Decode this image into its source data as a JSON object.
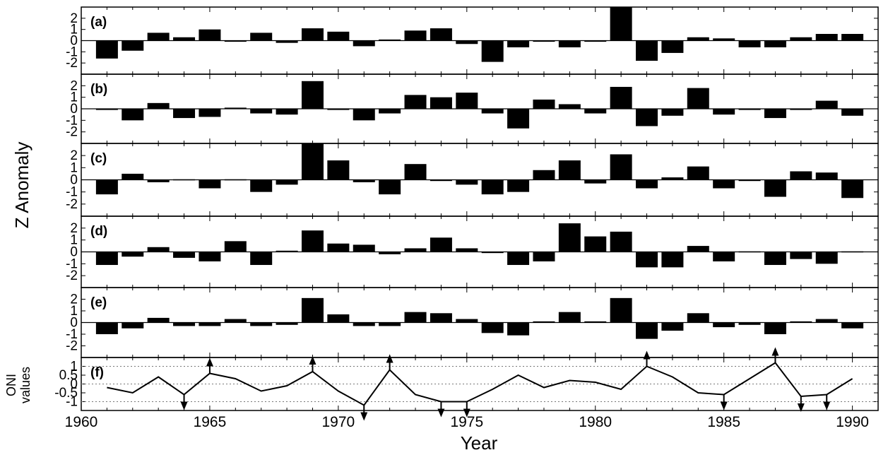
{
  "y_axis_title": "Z Anomaly",
  "x_axis_title": "Year",
  "oni_axis_title_line1": "ONI",
  "oni_axis_title_line2": "values",
  "x_ticks": [
    "1960",
    "1965",
    "1970",
    "1975",
    "1980",
    "1985",
    "1990"
  ],
  "chart_data": [
    {
      "type": "bar",
      "panel_label": "(a)",
      "ylim": [
        -3,
        3
      ],
      "yticks": [
        2,
        1,
        0,
        -1,
        -2
      ],
      "x": [
        1961,
        1962,
        1963,
        1964,
        1965,
        1966,
        1967,
        1968,
        1969,
        1970,
        1971,
        1972,
        1973,
        1974,
        1975,
        1976,
        1977,
        1978,
        1979,
        1980,
        1981,
        1982,
        1983,
        1984,
        1985,
        1986,
        1987,
        1988,
        1989,
        1990
      ],
      "values": [
        -1.6,
        -0.9,
        0.7,
        0.3,
        1.0,
        -0.1,
        0.7,
        -0.2,
        1.1,
        0.8,
        -0.5,
        0.1,
        0.9,
        1.1,
        -0.3,
        -1.9,
        -0.6,
        -0.1,
        -0.6,
        -0.1,
        3.2,
        -1.8,
        -1.1,
        0.3,
        0.2,
        -0.6,
        -0.6,
        0.3,
        0.6,
        0.6
      ]
    },
    {
      "type": "bar",
      "panel_label": "(b)",
      "ylim": [
        -3,
        3
      ],
      "yticks": [
        2,
        1,
        0,
        -1,
        -2
      ],
      "x": [
        1961,
        1962,
        1963,
        1964,
        1965,
        1966,
        1967,
        1968,
        1969,
        1970,
        1971,
        1972,
        1973,
        1974,
        1975,
        1976,
        1977,
        1978,
        1979,
        1980,
        1981,
        1982,
        1983,
        1984,
        1985,
        1986,
        1987,
        1988,
        1989,
        1990
      ],
      "values": [
        -0.1,
        -1.0,
        0.5,
        -0.8,
        -0.7,
        0.1,
        -0.4,
        -0.5,
        2.4,
        -0.1,
        -1.0,
        -0.4,
        1.2,
        1.0,
        1.4,
        -0.4,
        -1.7,
        0.8,
        0.4,
        -0.4,
        1.9,
        -1.5,
        -0.6,
        1.8,
        -0.5,
        -0.1,
        -0.8,
        -0.1,
        0.7,
        -0.6
      ]
    },
    {
      "type": "bar",
      "panel_label": "(c)",
      "ylim": [
        -3,
        3
      ],
      "yticks": [
        2,
        1,
        0,
        -1,
        -2
      ],
      "x": [
        1961,
        1962,
        1963,
        1964,
        1965,
        1966,
        1967,
        1968,
        1969,
        1970,
        1971,
        1972,
        1973,
        1974,
        1975,
        1976,
        1977,
        1978,
        1979,
        1980,
        1981,
        1982,
        1983,
        1984,
        1985,
        1986,
        1987,
        1988,
        1989,
        1990
      ],
      "values": [
        -1.2,
        0.5,
        -0.2,
        0.0,
        -0.7,
        0.0,
        -1.0,
        -0.4,
        3.0,
        1.6,
        -0.2,
        -1.2,
        1.3,
        -0.1,
        -0.4,
        -1.2,
        -1.0,
        0.8,
        1.6,
        -0.3,
        2.1,
        -0.7,
        0.2,
        1.1,
        -0.7,
        -0.1,
        -1.4,
        0.7,
        0.6,
        -1.5
      ]
    },
    {
      "type": "bar",
      "panel_label": "(d)",
      "ylim": [
        -3,
        3
      ],
      "yticks": [
        2,
        1,
        0,
        -1,
        -2
      ],
      "x": [
        1961,
        1962,
        1963,
        1964,
        1965,
        1966,
        1967,
        1968,
        1969,
        1970,
        1971,
        1972,
        1973,
        1974,
        1975,
        1976,
        1977,
        1978,
        1979,
        1980,
        1981,
        1982,
        1983,
        1984,
        1985,
        1986,
        1987,
        1988,
        1989,
        1990
      ],
      "values": [
        -1.1,
        -0.4,
        0.4,
        -0.5,
        -0.8,
        0.9,
        -1.1,
        0.1,
        1.8,
        0.7,
        0.6,
        -0.2,
        0.3,
        1.2,
        0.3,
        -0.1,
        -1.1,
        -0.8,
        2.4,
        1.3,
        1.7,
        -1.3,
        -1.3,
        0.5,
        -0.8,
        0.0,
        -1.1,
        -0.6,
        -1.0,
        0.0
      ]
    },
    {
      "type": "bar",
      "panel_label": "(e)",
      "ylim": [
        -3,
        3
      ],
      "yticks": [
        2,
        1,
        0,
        -1,
        -2
      ],
      "x": [
        1961,
        1962,
        1963,
        1964,
        1965,
        1966,
        1967,
        1968,
        1969,
        1970,
        1971,
        1972,
        1973,
        1974,
        1975,
        1976,
        1977,
        1978,
        1979,
        1980,
        1981,
        1982,
        1983,
        1984,
        1985,
        1986,
        1987,
        1988,
        1989,
        1990
      ],
      "values": [
        -1.0,
        -0.5,
        0.4,
        -0.3,
        -0.3,
        0.3,
        -0.3,
        -0.2,
        2.1,
        0.7,
        -0.3,
        -0.3,
        0.9,
        0.8,
        0.3,
        -0.9,
        -1.1,
        0.1,
        0.9,
        0.1,
        2.1,
        -1.4,
        -0.7,
        0.8,
        -0.4,
        -0.2,
        -1.0,
        0.1,
        0.3,
        -0.5
      ]
    },
    {
      "type": "line",
      "panel_label": "(f)",
      "ylim": [
        -1.5,
        1.5
      ],
      "yticks": [
        1,
        0.5,
        0,
        -0.5,
        -1
      ],
      "ytick_labels": [
        "1",
        "0.5",
        "0",
        "-0.5",
        "-1"
      ],
      "reference_lines": [
        1,
        -1
      ],
      "x": [
        1961,
        1962,
        1963,
        1964,
        1965,
        1966,
        1967,
        1968,
        1969,
        1970,
        1971,
        1972,
        1973,
        1974,
        1975,
        1976,
        1977,
        1978,
        1979,
        1980,
        1981,
        1982,
        1983,
        1984,
        1985,
        1986,
        1987,
        1988,
        1989,
        1990
      ],
      "values": [
        -0.2,
        -0.5,
        0.4,
        -0.6,
        0.6,
        0.3,
        -0.4,
        -0.1,
        0.7,
        -0.4,
        -1.2,
        0.8,
        -0.6,
        -1.0,
        -1.0,
        -0.3,
        0.5,
        -0.2,
        0.2,
        0.1,
        -0.3,
        1.0,
        0.4,
        -0.5,
        -0.6,
        0.3,
        1.2,
        -0.7,
        -0.6,
        0.3
      ],
      "up_arrow_years": [
        1965,
        1969,
        1972,
        1982,
        1987
      ],
      "down_arrow_years": [
        1964,
        1971,
        1974,
        1975,
        1985,
        1988,
        1989
      ]
    }
  ]
}
